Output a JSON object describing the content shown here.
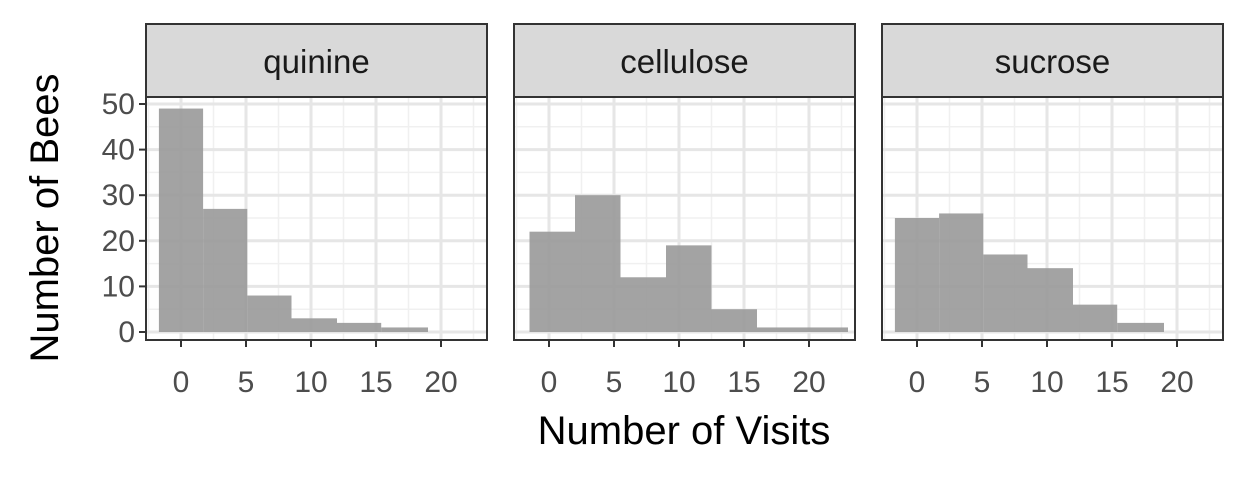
{
  "chart_data": {
    "type": "bar",
    "subtype": "faceted-histogram",
    "xlabel": "Number of Visits",
    "ylabel": "Number of Bees",
    "x_ticks": [
      0,
      5,
      10,
      15,
      20
    ],
    "y_ticks": [
      0,
      10,
      20,
      30,
      40,
      50
    ],
    "xlim": [
      -2.5,
      23.5
    ],
    "ylim": [
      0,
      51
    ],
    "grid": true,
    "bar_color": "#999999",
    "strip_color": "#d9d9d9",
    "panels": [
      {
        "name": "quinine",
        "bins": [
          {
            "x0": -1.7,
            "x1": 1.7,
            "count": 49
          },
          {
            "x0": 1.7,
            "x1": 5.1,
            "count": 27
          },
          {
            "x0": 5.1,
            "x1": 8.5,
            "count": 8
          },
          {
            "x0": 8.5,
            "x1": 12.0,
            "count": 3
          },
          {
            "x0": 12.0,
            "x1": 15.4,
            "count": 2
          },
          {
            "x0": 15.4,
            "x1": 19.0,
            "count": 1
          }
        ]
      },
      {
        "name": "cellulose",
        "bins": [
          {
            "x0": -1.5,
            "x1": 2.0,
            "count": 22
          },
          {
            "x0": 2.0,
            "x1": 5.5,
            "count": 30
          },
          {
            "x0": 5.5,
            "x1": 9.0,
            "count": 12
          },
          {
            "x0": 9.0,
            "x1": 12.5,
            "count": 19
          },
          {
            "x0": 12.5,
            "x1": 16.0,
            "count": 5
          },
          {
            "x0": 16.0,
            "x1": 19.5,
            "count": 1
          },
          {
            "x0": 19.5,
            "x1": 23.0,
            "count": 1
          }
        ]
      },
      {
        "name": "sucrose",
        "bins": [
          {
            "x0": -1.7,
            "x1": 1.7,
            "count": 25
          },
          {
            "x0": 1.7,
            "x1": 5.1,
            "count": 26
          },
          {
            "x0": 5.1,
            "x1": 8.5,
            "count": 17
          },
          {
            "x0": 8.5,
            "x1": 12.0,
            "count": 14
          },
          {
            "x0": 12.0,
            "x1": 15.4,
            "count": 6
          },
          {
            "x0": 15.4,
            "x1": 19.0,
            "count": 2
          }
        ]
      }
    ]
  }
}
